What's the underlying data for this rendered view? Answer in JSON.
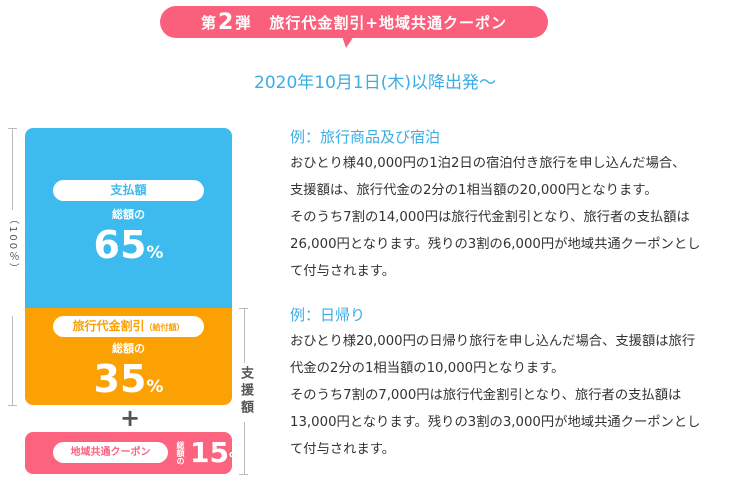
{
  "banner": {
    "prefix": "第",
    "number": "2",
    "suffix": "弾",
    "title": "旅行代金割引+地域共通クーポン"
  },
  "date": "2020年10月1日(木)以降出発～",
  "diagram": {
    "total_label": "旅行代金総額（100％）",
    "support_label": "支援額",
    "payment": {
      "label": "支払額",
      "sub": "総額の",
      "value": "65",
      "unit": "%"
    },
    "discount": {
      "label": "旅行代金割引",
      "label_note": "（給付額）",
      "sub": "総額の",
      "value": "35",
      "unit": "%"
    },
    "plus": "+",
    "coupon": {
      "label": "地域共通クーポン",
      "sub": "総額の",
      "value": "15",
      "unit": "%"
    },
    "colors": {
      "payment": "#3dbaee",
      "discount": "#fca104",
      "coupon": "#fc637e"
    }
  },
  "examples": [
    {
      "heading": "例：旅行商品及び宿泊",
      "lines": [
        "おひとり様40,000円の1泊2日の宿泊付き旅行を申し込んだ場合、",
        "支援額は、旅行代金の2分の1相当額の20,000円となります。",
        "そのうち7割の14,000円は旅行代金割引となり、旅行者の支払額は",
        "26,000円となります。残りの3割の6,000円が地域共通クーポンとし",
        "て付与されます。"
      ]
    },
    {
      "heading": "例：日帰り",
      "lines": [
        "おひとり様20,000円の日帰り旅行を申し込んだ場合、支援額は旅行",
        "代金の2分の1相当額の10,000円となります。",
        "そのうち7割の7,000円は旅行代金割引となり、旅行者の支払額は",
        "13,000円となります。残りの3割の3,000円が地域共通クーポンとし",
        "て付与されます。"
      ]
    }
  ]
}
